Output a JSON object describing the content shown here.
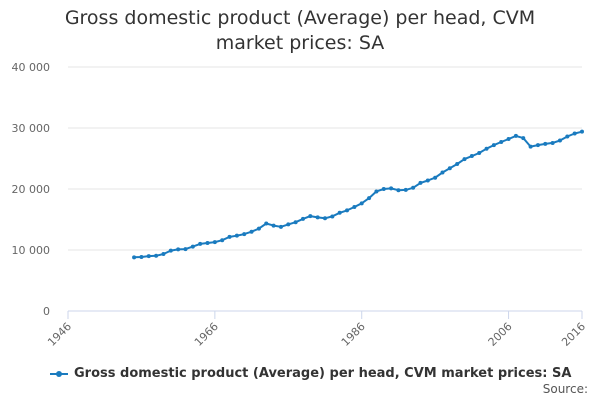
{
  "chart_data": {
    "type": "line",
    "title": "Gross domestic product (Average) per head, CVM market prices: SA",
    "xlabel": "",
    "ylabel": "",
    "xlim": [
      1946,
      2016
    ],
    "ylim": [
      0,
      40000
    ],
    "x_ticks": [
      {
        "value": 1946,
        "label": "1946"
      },
      {
        "value": 1966,
        "label": "1966"
      },
      {
        "value": 1986,
        "label": "1986"
      },
      {
        "value": 2006,
        "label": "2006"
      },
      {
        "value": 2016,
        "label": "2016"
      }
    ],
    "y_ticks": [
      {
        "value": 0,
        "label": "0"
      },
      {
        "value": 10000,
        "label": "10 000"
      },
      {
        "value": 20000,
        "label": "20 000"
      },
      {
        "value": 30000,
        "label": "30 000"
      },
      {
        "value": 40000,
        "label": "40 000"
      }
    ],
    "grid": "horizontal",
    "legend_position": "bottom-left",
    "series": [
      {
        "name": "Gross domestic product (Average) per head, CVM market prices: SA",
        "color": "#1a7bbf",
        "points": [
          [
            1955,
            8800
          ],
          [
            1956,
            8850
          ],
          [
            1957,
            9000
          ],
          [
            1958,
            9050
          ],
          [
            1959,
            9350
          ],
          [
            1960,
            9900
          ],
          [
            1961,
            10100
          ],
          [
            1962,
            10150
          ],
          [
            1963,
            10550
          ],
          [
            1964,
            11000
          ],
          [
            1965,
            11150
          ],
          [
            1966,
            11300
          ],
          [
            1967,
            11600
          ],
          [
            1968,
            12150
          ],
          [
            1969,
            12350
          ],
          [
            1970,
            12600
          ],
          [
            1971,
            13000
          ],
          [
            1972,
            13500
          ],
          [
            1973,
            14350
          ],
          [
            1974,
            14000
          ],
          [
            1975,
            13800
          ],
          [
            1976,
            14200
          ],
          [
            1977,
            14550
          ],
          [
            1978,
            15100
          ],
          [
            1979,
            15550
          ],
          [
            1980,
            15350
          ],
          [
            1981,
            15200
          ],
          [
            1982,
            15500
          ],
          [
            1983,
            16100
          ],
          [
            1984,
            16500
          ],
          [
            1985,
            17050
          ],
          [
            1986,
            17650
          ],
          [
            1987,
            18500
          ],
          [
            1988,
            19600
          ],
          [
            1989,
            20000
          ],
          [
            1990,
            20100
          ],
          [
            1991,
            19800
          ],
          [
            1992,
            19850
          ],
          [
            1993,
            20200
          ],
          [
            1994,
            21000
          ],
          [
            1995,
            21400
          ],
          [
            1996,
            21850
          ],
          [
            1997,
            22700
          ],
          [
            1998,
            23400
          ],
          [
            1999,
            24100
          ],
          [
            2000,
            24900
          ],
          [
            2001,
            25400
          ],
          [
            2002,
            25900
          ],
          [
            2003,
            26600
          ],
          [
            2004,
            27200
          ],
          [
            2005,
            27700
          ],
          [
            2006,
            28200
          ],
          [
            2007,
            28700
          ],
          [
            2008,
            28350
          ],
          [
            2009,
            26950
          ],
          [
            2010,
            27200
          ],
          [
            2011,
            27400
          ],
          [
            2012,
            27550
          ],
          [
            2013,
            27950
          ],
          [
            2014,
            28600
          ],
          [
            2015,
            29100
          ],
          [
            2016,
            29400
          ]
        ]
      }
    ],
    "source_label": "Source:"
  }
}
